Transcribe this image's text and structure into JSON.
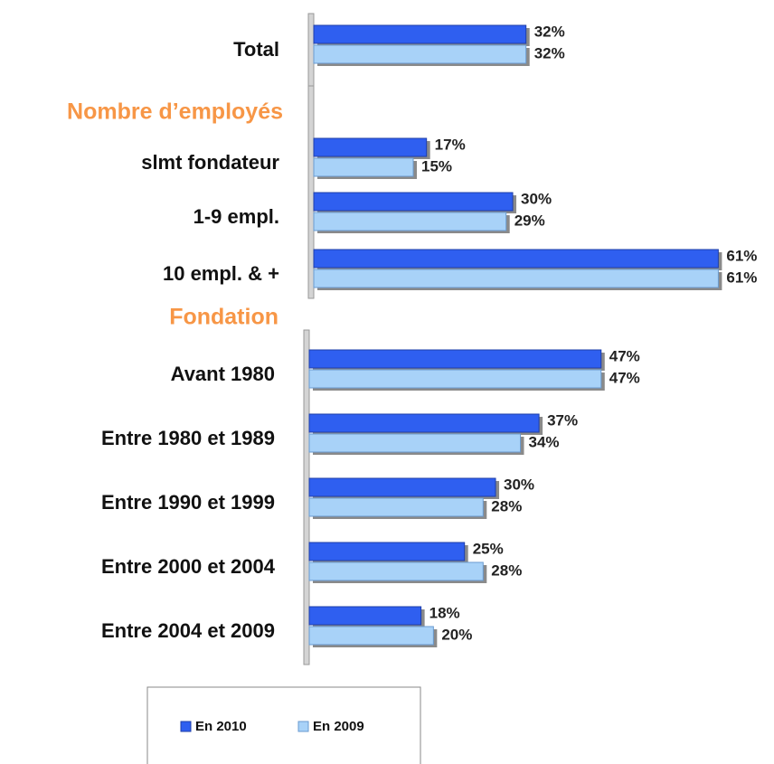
{
  "legend": {
    "series": [
      {
        "name": "En 2010",
        "color": "#2f5ff0"
      },
      {
        "name": "En 2009",
        "color": "#a8d2f8"
      }
    ]
  },
  "chart_data": [
    {
      "type": "bar",
      "categories": [
        "Total"
      ],
      "xlim": [
        0,
        63.4
      ],
      "series": [
        {
          "values": [
            32
          ],
          "value_labels": [
            "32%"
          ]
        },
        {
          "values": [
            32
          ],
          "value_labels": [
            "32%"
          ]
        }
      ]
    },
    {
      "type": "bar",
      "title": "Nombre d’employés",
      "categories": [
        "slmt fondateur",
        "1-9 empl.",
        "10 empl. & +"
      ],
      "xlim": [
        0,
        63.4
      ],
      "series": [
        {
          "values": [
            17,
            30,
            61
          ],
          "value_labels": [
            "17%",
            "30%",
            "61%"
          ]
        },
        {
          "values": [
            15,
            29,
            61
          ],
          "value_labels": [
            "15%",
            "29%",
            "61%"
          ]
        }
      ]
    },
    {
      "type": "bar",
      "title": "Fondation",
      "categories": [
        "Avant 1980",
        "Entre 1980 et 1989",
        "Entre 1990 et 1999",
        "Entre 2000 et 2004",
        "Entre 2004 et 2009"
      ],
      "xlim": [
        0,
        68
      ],
      "series": [
        {
          "values": [
            47,
            37,
            30,
            25,
            18
          ],
          "value_labels": [
            "47%",
            "37%",
            "30%",
            "25%",
            "18%"
          ]
        },
        {
          "values": [
            47,
            34,
            28,
            28,
            20
          ],
          "value_labels": [
            "47%",
            "34%",
            "28%",
            "28%",
            "20%"
          ]
        }
      ]
    }
  ]
}
